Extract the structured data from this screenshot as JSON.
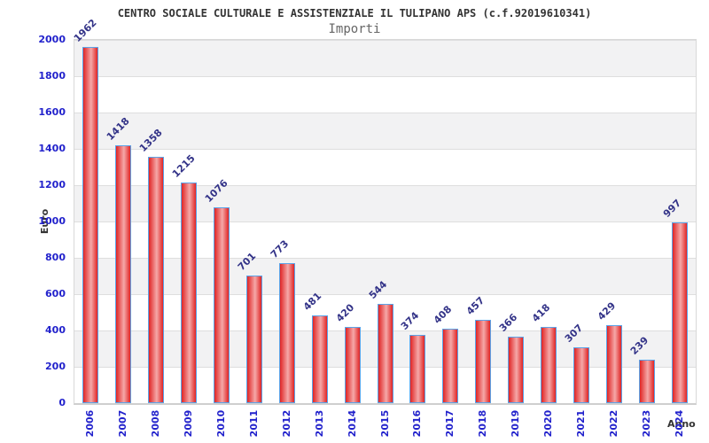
{
  "header": {
    "title": "CENTRO SOCIALE CULTURALE E ASSISTENZIALE IL TULIPANO APS (c.f.92019610341)",
    "subtitle": "Importi"
  },
  "chart_data": {
    "type": "bar",
    "title": "CENTRO SOCIALE CULTURALE E ASSISTENZIALE IL TULIPANO APS (c.f.92019610341)",
    "subtitle": "Importi",
    "xlabel": "Anno",
    "ylabel": "Euro",
    "categories": [
      "2006",
      "2007",
      "2008",
      "2009",
      "2010",
      "2011",
      "2012",
      "2013",
      "2014",
      "2015",
      "2016",
      "2017",
      "2018",
      "2019",
      "2020",
      "2021",
      "2022",
      "2023",
      "2024"
    ],
    "values": [
      1962,
      1418,
      1358,
      1215,
      1076,
      701,
      773,
      481,
      420,
      544,
      374,
      408,
      457,
      366,
      418,
      307,
      429,
      239,
      997
    ],
    "ylim": [
      0,
      2000
    ],
    "ytick_step": 200,
    "grid": true,
    "legend_position": "none",
    "value_labels_rotation_deg": -45,
    "xtick_rotation_deg": -90,
    "plot_background": "alternating-horizontal-bands",
    "colors": {
      "bar_fill_edge": "#e02525",
      "bar_fill_center": "#f5a8a8",
      "bar_border": "#5ba3e8",
      "tick_label": "#2222cc",
      "value_label": "#333388",
      "band_gray": "#f2f2f3",
      "band_white": "#ffffff",
      "gridline": "#dedede",
      "title": "#333333",
      "subtitle": "#666666",
      "axis_name": "#333333",
      "background": "#ffffff"
    }
  }
}
